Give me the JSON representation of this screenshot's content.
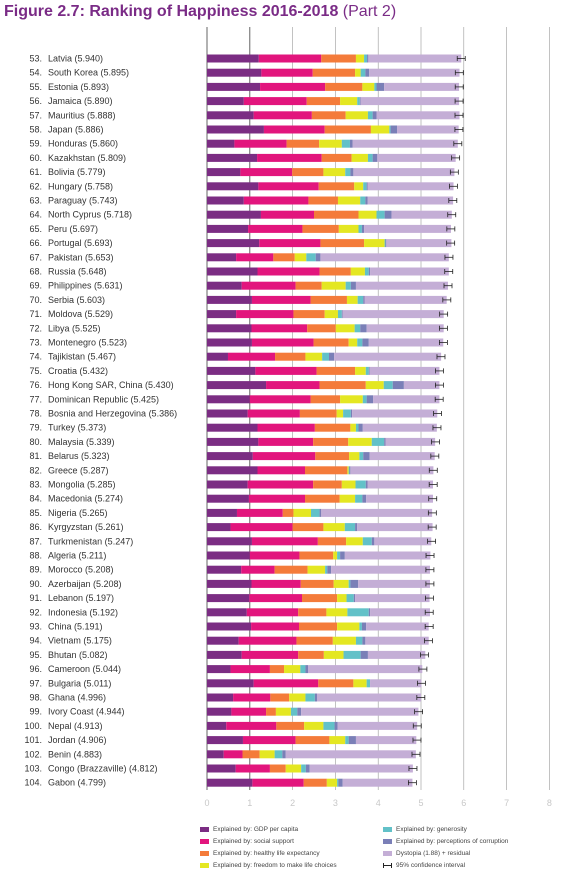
{
  "title_main": "Figure 2.7: Ranking of Happiness 2016-2018",
  "title_part": "(Part 2)",
  "colors": {
    "gdp": "#7b2d83",
    "social": "#e2157d",
    "life": "#f47b3a",
    "freedom": "#e4e722",
    "generosity": "#62c1c8",
    "corruption": "#7a7fb7",
    "dystopia": "#c4aed6",
    "grid": "#999999"
  },
  "legend": [
    {
      "key": "gdp",
      "label": "Explained by: GDP per capita"
    },
    {
      "key": "social",
      "label": "Explained by: social support"
    },
    {
      "key": "life",
      "label": "Explained by: healthy life expectancy"
    },
    {
      "key": "freedom",
      "label": "Explained by: freedom to make life choices"
    },
    {
      "key": "generosity",
      "label": "Explained by: generosity"
    },
    {
      "key": "corruption",
      "label": "Explained by: perceptions of corruption"
    },
    {
      "key": "dystopia",
      "label": "Dystopia (1.88) + residual"
    },
    {
      "key": "ci",
      "label": "95% confidence interval"
    }
  ],
  "chart_data": {
    "type": "bar",
    "orientation": "horizontal",
    "stacked": true,
    "title": "Figure 2.7: Ranking of Happiness 2016-2018 (Part 2)",
    "xlim": [
      0,
      8
    ],
    "xticks": [
      0,
      1,
      2,
      3,
      4,
      5,
      6,
      7,
      8
    ],
    "components": [
      "gdp",
      "social",
      "life",
      "freedom",
      "generosity",
      "corruption",
      "dystopia"
    ],
    "rows": [
      {
        "rank": "53.",
        "name": "Latvia",
        "score": "5.940",
        "v": [
          1.21,
          1.46,
          0.81,
          0.19,
          0.07,
          0.03,
          2.17
        ]
      },
      {
        "rank": "54.",
        "name": "South Korea",
        "score": "5.895",
        "v": [
          1.27,
          1.2,
          0.99,
          0.13,
          0.11,
          0.09,
          2.11
        ]
      },
      {
        "rank": "55.",
        "name": "Estonia",
        "score": "5.893",
        "v": [
          1.24,
          1.52,
          0.87,
          0.28,
          0.05,
          0.18,
          1.75
        ]
      },
      {
        "rank": "56.",
        "name": "Jamaica",
        "score": "5.890",
        "v": [
          0.86,
          1.47,
          0.78,
          0.4,
          0.06,
          0.02,
          2.3
        ]
      },
      {
        "rank": "57.",
        "name": "Mauritius",
        "score": "5.888",
        "v": [
          1.09,
          1.36,
          0.79,
          0.52,
          0.11,
          0.09,
          1.94
        ]
      },
      {
        "rank": "58.",
        "name": "Japan",
        "score": "5.886",
        "v": [
          1.33,
          1.42,
          1.08,
          0.43,
          0.03,
          0.15,
          1.44
        ]
      },
      {
        "rank": "59.",
        "name": "Honduras",
        "score": "5.860",
        "v": [
          0.64,
          1.22,
          0.76,
          0.53,
          0.19,
          0.06,
          2.46
        ]
      },
      {
        "rank": "60.",
        "name": "Kazakhstan",
        "score": "5.809",
        "v": [
          1.17,
          1.51,
          0.7,
          0.38,
          0.11,
          0.11,
          1.83
        ]
      },
      {
        "rank": "61.",
        "name": "Bolivia",
        "score": "5.779",
        "v": [
          0.78,
          1.21,
          0.73,
          0.51,
          0.12,
          0.07,
          2.36
        ]
      },
      {
        "rank": "62.",
        "name": "Hungary",
        "score": "5.758",
        "v": [
          1.2,
          1.41,
          0.83,
          0.21,
          0.08,
          0.02,
          2.01
        ]
      },
      {
        "rank": "63.",
        "name": "Paraguay",
        "score": "5.743",
        "v": [
          0.86,
          1.51,
          0.69,
          0.52,
          0.12,
          0.05,
          2.0
        ]
      },
      {
        "rank": "64.",
        "name": "North Cyprus",
        "score": "5.718",
        "v": [
          1.26,
          1.24,
          1.04,
          0.42,
          0.19,
          0.16,
          1.41
        ]
      },
      {
        "rank": "65.",
        "name": "Peru",
        "score": "5.697",
        "v": [
          0.96,
          1.27,
          0.85,
          0.46,
          0.08,
          0.05,
          2.03
        ]
      },
      {
        "rank": "66.",
        "name": "Portugal",
        "score": "5.693",
        "v": [
          1.22,
          1.43,
          1.02,
          0.48,
          0.02,
          0.02,
          1.52
        ]
      },
      {
        "rank": "67.",
        "name": "Pakistan",
        "score": "5.653",
        "v": [
          0.68,
          0.87,
          0.5,
          0.27,
          0.22,
          0.11,
          3.0
        ]
      },
      {
        "rank": "68.",
        "name": "Russia",
        "score": "5.648",
        "v": [
          1.18,
          1.45,
          0.73,
          0.33,
          0.09,
          0.03,
          1.84
        ]
      },
      {
        "rank": "69.",
        "name": "Philippines",
        "score": "5.631",
        "v": [
          0.81,
          1.26,
          0.61,
          0.56,
          0.12,
          0.12,
          2.15
        ]
      },
      {
        "rank": "70.",
        "name": "Serbia",
        "score": "5.603",
        "v": [
          1.05,
          1.37,
          0.85,
          0.25,
          0.13,
          0.03,
          1.92
        ]
      },
      {
        "rank": "71.",
        "name": "Moldova",
        "score": "5.529",
        "v": [
          0.68,
          1.34,
          0.73,
          0.31,
          0.09,
          0.02,
          2.36
        ]
      },
      {
        "rank": "72.",
        "name": "Libya",
        "score": "5.525",
        "v": [
          1.04,
          1.3,
          0.67,
          0.44,
          0.13,
          0.15,
          1.8
        ]
      },
      {
        "rank": "73.",
        "name": "Montenegro",
        "score": "5.523",
        "v": [
          1.05,
          1.44,
          0.82,
          0.2,
          0.12,
          0.15,
          1.74
        ]
      },
      {
        "rank": "74.",
        "name": "Tajikistan",
        "score": "5.467",
        "v": [
          0.49,
          1.1,
          0.71,
          0.39,
          0.16,
          0.12,
          2.5
        ]
      },
      {
        "rank": "75.",
        "name": "Croatia",
        "score": "5.432",
        "v": [
          1.13,
          1.43,
          0.9,
          0.25,
          0.07,
          0.02,
          1.63
        ]
      },
      {
        "rank": "76.",
        "name": "Hong Kong SAR, China",
        "score": "5.430",
        "v": [
          1.38,
          1.25,
          1.08,
          0.42,
          0.21,
          0.26,
          0.83
        ]
      },
      {
        "rank": "77.",
        "name": "Dominican Republic",
        "score": "5.425",
        "v": [
          1.0,
          1.42,
          0.69,
          0.53,
          0.09,
          0.15,
          1.55
        ]
      },
      {
        "rank": "78.",
        "name": "Bosnia and Herzegovina",
        "score": "5.386",
        "v": [
          0.95,
          1.22,
          0.86,
          0.15,
          0.18,
          0.03,
          1.99
        ]
      },
      {
        "rank": "79.",
        "name": "Turkey",
        "score": "5.373",
        "v": [
          1.18,
          1.34,
          0.83,
          0.13,
          0.06,
          0.1,
          1.73
        ]
      },
      {
        "rank": "80.",
        "name": "Malaysia",
        "score": "5.339",
        "v": [
          1.2,
          1.28,
          0.82,
          0.55,
          0.29,
          0.03,
          1.16
        ]
      },
      {
        "rank": "81.",
        "name": "Belarus",
        "score": "5.323",
        "v": [
          1.07,
          1.46,
          0.79,
          0.24,
          0.09,
          0.15,
          1.52
        ]
      },
      {
        "rank": "82.",
        "name": "Greece",
        "score": "5.287",
        "v": [
          1.18,
          1.11,
          0.99,
          0.03,
          0.02,
          0.02,
          1.94
        ]
      },
      {
        "rank": "83.",
        "name": "Mongolia",
        "score": "5.285",
        "v": [
          0.95,
          1.53,
          0.67,
          0.32,
          0.24,
          0.04,
          1.53
        ]
      },
      {
        "rank": "84.",
        "name": "Macedonia",
        "score": "5.274",
        "v": [
          0.98,
          1.31,
          0.81,
          0.36,
          0.17,
          0.09,
          1.56
        ]
      },
      {
        "rank": "85.",
        "name": "Nigeria",
        "score": "5.265",
        "v": [
          0.7,
          1.07,
          0.25,
          0.41,
          0.2,
          0.04,
          2.59
        ]
      },
      {
        "rank": "86.",
        "name": "Kyrgyzstan",
        "score": "5.261",
        "v": [
          0.55,
          1.45,
          0.72,
          0.5,
          0.24,
          0.05,
          1.76
        ]
      },
      {
        "rank": "87.",
        "name": "Turkmenistan",
        "score": "5.247",
        "v": [
          1.05,
          1.54,
          0.66,
          0.39,
          0.21,
          0.06,
          1.33
        ]
      },
      {
        "rank": "88.",
        "name": "Algeria",
        "score": "5.211",
        "v": [
          1.0,
          1.16,
          0.79,
          0.09,
          0.07,
          0.11,
          2.0
        ]
      },
      {
        "rank": "89.",
        "name": "Morocco",
        "score": "5.208",
        "v": [
          0.8,
          0.78,
          0.77,
          0.41,
          0.05,
          0.09,
          2.31
        ]
      },
      {
        "rank": "90.",
        "name": "Azerbaijan",
        "score": "5.208",
        "v": [
          1.04,
          1.15,
          0.77,
          0.35,
          0.04,
          0.18,
          1.68
        ]
      },
      {
        "rank": "91.",
        "name": "Lebanon",
        "score": "5.197",
        "v": [
          0.99,
          1.23,
          0.82,
          0.22,
          0.17,
          0.03,
          1.74
        ]
      },
      {
        "rank": "92.",
        "name": "Indonesia",
        "score": "5.192",
        "v": [
          0.93,
          1.2,
          0.66,
          0.49,
          0.5,
          0.03,
          1.4
        ]
      },
      {
        "rank": "93.",
        "name": "China",
        "score": "5.191",
        "v": [
          1.03,
          1.12,
          0.89,
          0.52,
          0.06,
          0.1,
          1.46
        ]
      },
      {
        "rank": "94.",
        "name": "Vietnam",
        "score": "5.175",
        "v": [
          0.74,
          1.35,
          0.85,
          0.54,
          0.15,
          0.07,
          1.48
        ]
      },
      {
        "rank": "95.",
        "name": "Bhutan",
        "score": "5.082",
        "v": [
          0.81,
          1.32,
          0.6,
          0.46,
          0.4,
          0.17,
          1.34
        ]
      },
      {
        "rank": "96.",
        "name": "Cameroon",
        "score": "5.044",
        "v": [
          0.55,
          0.92,
          0.33,
          0.38,
          0.12,
          0.06,
          2.67
        ]
      },
      {
        "rank": "97.",
        "name": "Bulgaria",
        "score": "5.011",
        "v": [
          1.09,
          1.51,
          0.82,
          0.31,
          0.08,
          0.0,
          1.2
        ]
      },
      {
        "rank": "98.",
        "name": "Ghana",
        "score": "4.996",
        "v": [
          0.61,
          0.87,
          0.44,
          0.38,
          0.22,
          0.05,
          2.43
        ]
      },
      {
        "rank": "99.",
        "name": "Ivory Coast",
        "score": "4.944",
        "v": [
          0.57,
          0.81,
          0.23,
          0.35,
          0.15,
          0.09,
          2.74
        ]
      },
      {
        "rank": "100.",
        "name": "Nepal",
        "score": "4.913",
        "v": [
          0.45,
          1.17,
          0.65,
          0.45,
          0.26,
          0.07,
          1.86
        ]
      },
      {
        "rank": "101.",
        "name": "Jordan",
        "score": "4.906",
        "v": [
          0.84,
          1.23,
          0.79,
          0.37,
          0.08,
          0.17,
          1.41
        ]
      },
      {
        "rank": "102.",
        "name": "Benin",
        "score": "4.883",
        "v": [
          0.39,
          0.44,
          0.4,
          0.35,
          0.18,
          0.08,
          3.04
        ]
      },
      {
        "rank": "103.",
        "name": "Congo (Brazzaville)",
        "score": "4.812",
        "v": [
          0.67,
          0.8,
          0.37,
          0.36,
          0.11,
          0.09,
          2.41
        ]
      },
      {
        "rank": "104.",
        "name": "Gabon",
        "score": "4.799",
        "v": [
          1.06,
          1.2,
          0.54,
          0.24,
          0.03,
          0.1,
          1.63
        ]
      }
    ]
  }
}
